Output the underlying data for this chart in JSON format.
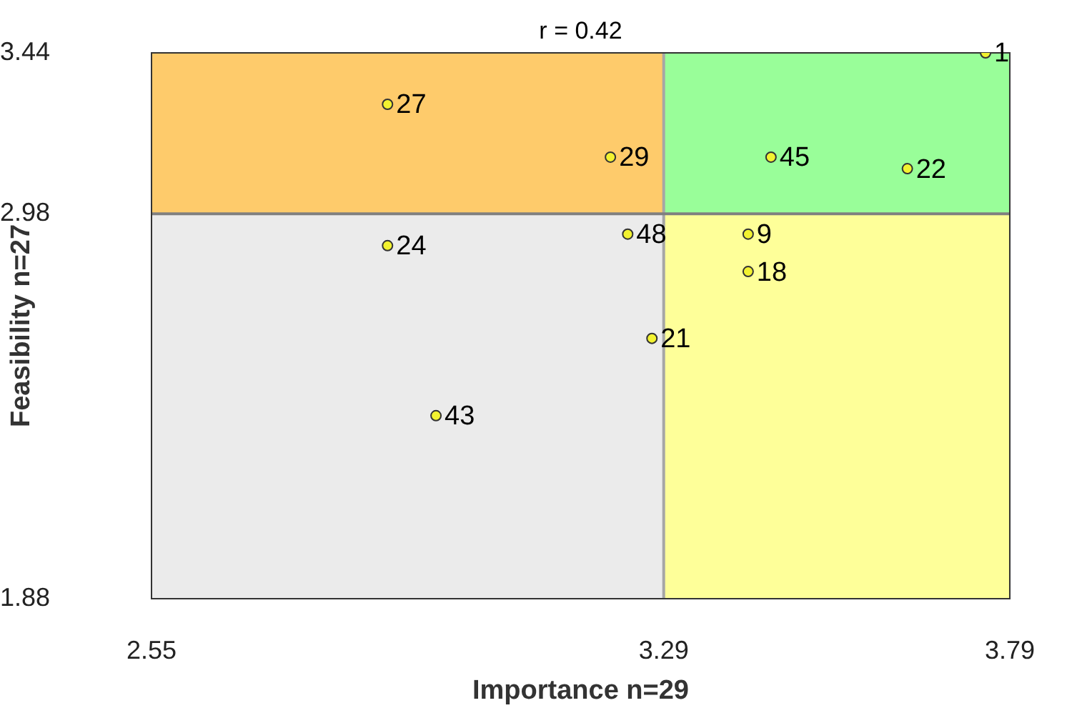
{
  "chart_data": {
    "type": "scatter",
    "title": "r = 0.42",
    "xlabel": "Importance n=29",
    "ylabel": "Feasibility n=27",
    "x": [
      3.755,
      2.891,
      3.213,
      3.445,
      3.642,
      3.238,
      3.412,
      2.891,
      3.412,
      3.273,
      2.961
    ],
    "series": [
      {
        "color": "#f2f230",
        "values": [
          3.44,
          3.293,
          3.142,
          3.142,
          3.109,
          2.922,
          2.922,
          2.889,
          2.815,
          2.624,
          2.403
        ]
      }
    ],
    "annotations": [
      {
        "text": "1",
        "x": 3.755,
        "y": 3.44
      },
      {
        "text": "27",
        "x": 2.891,
        "y": 3.293
      },
      {
        "text": "29",
        "x": 3.213,
        "y": 3.142
      },
      {
        "text": "45",
        "x": 3.445,
        "y": 3.142
      },
      {
        "text": "22",
        "x": 3.642,
        "y": 3.109
      },
      {
        "text": "48",
        "x": 3.238,
        "y": 2.922
      },
      {
        "text": "9",
        "x": 3.412,
        "y": 2.922
      },
      {
        "text": "24",
        "x": 2.891,
        "y": 2.889
      },
      {
        "text": "18",
        "x": 3.412,
        "y": 2.815
      },
      {
        "text": "21",
        "x": 3.273,
        "y": 2.624
      },
      {
        "text": "43",
        "x": 2.961,
        "y": 2.403
      }
    ],
    "xlim": [
      2.55,
      3.79
    ],
    "xticks": [
      2.55,
      3.29,
      3.79
    ],
    "ylim": [
      1.88,
      3.44
    ],
    "yticks": [
      1.88,
      2.98,
      3.44
    ],
    "ref_lines": [
      {
        "axis": "x",
        "value": 3.29,
        "color": "#a6a6a6"
      },
      {
        "axis": "y",
        "value": 2.98,
        "color": "#808080"
      }
    ],
    "legend": false,
    "marker": "circle"
  }
}
